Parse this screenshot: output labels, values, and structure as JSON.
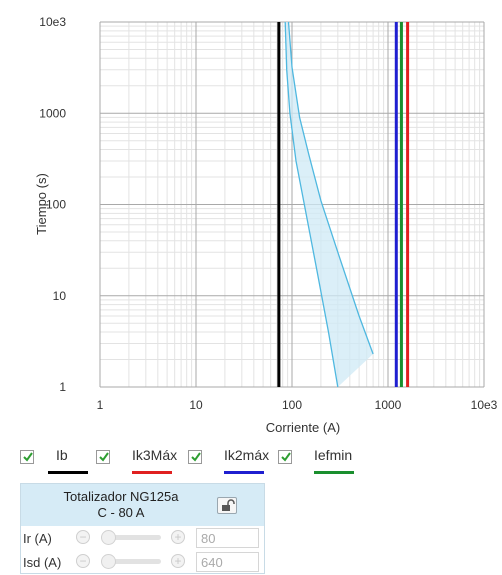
{
  "chart_data": {
    "type": "line",
    "xlabel": "Corriente (A)",
    "ylabel": "Tiempo (s)",
    "xscale": "log",
    "yscale": "log",
    "xlim": [
      1,
      10000
    ],
    "ylim": [
      1,
      10000
    ],
    "x_ticks": [
      "1",
      "10",
      "100",
      "1000",
      "10e3"
    ],
    "y_ticks": [
      "1",
      "10",
      "100",
      "1000",
      "10e3"
    ],
    "grid": true,
    "vertical_lines": [
      {
        "name": "Ib",
        "x": 73,
        "color": "#000000"
      },
      {
        "name": "Ik2máx",
        "x": 1220,
        "color": "#1f1fd0"
      },
      {
        "name": "Iefmin",
        "x": 1380,
        "color": "#1a8f2e"
      },
      {
        "name": "Ik3Máx",
        "x": 1600,
        "color": "#e02020"
      }
    ],
    "trip_band": {
      "name": "Totalizador NG125a",
      "color": "#4fb8e0",
      "fill": "#cfe9f6",
      "upper": [
        [
          92,
          10000
        ],
        [
          100,
          3200
        ],
        [
          120,
          900
        ],
        [
          150,
          350
        ],
        [
          200,
          110
        ],
        [
          300,
          30
        ],
        [
          500,
          6
        ],
        [
          700,
          2.3
        ]
      ],
      "lower": [
        [
          85,
          10000
        ],
        [
          88,
          3000
        ],
        [
          95,
          1000
        ],
        [
          110,
          300
        ],
        [
          140,
          80
        ],
        [
          180,
          20
        ],
        [
          240,
          4
        ],
        [
          300,
          1
        ]
      ]
    }
  },
  "legend": {
    "items": [
      {
        "label": "Ib",
        "color": "#000000",
        "checked": true
      },
      {
        "label": "Ik3Máx",
        "color": "#e02020",
        "checked": true
      },
      {
        "label": "Ik2máx",
        "color": "#1f1fd0",
        "checked": true
      },
      {
        "label": "Iefmin",
        "color": "#1a8f2e",
        "checked": true
      }
    ]
  },
  "panel": {
    "title_line1": "Totalizador NG125a",
    "title_line2": "C - 80 A",
    "lock_icon": "unlock-icon",
    "rows": [
      {
        "label": "Ir (A)",
        "value": "80",
        "slider_level": 0
      },
      {
        "label": "Isd (A)",
        "value": "640",
        "slider_level": 0
      }
    ]
  }
}
